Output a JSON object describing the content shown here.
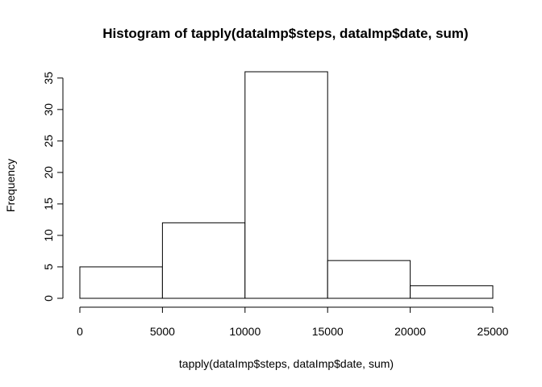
{
  "chart_data": {
    "type": "bar",
    "title": "Histogram of tapply(dataImp$steps, dataImp$date, sum)",
    "xlabel": "tapply(dataImp$steps, dataImp$date, sum)",
    "ylabel": "Frequency",
    "bins": [
      {
        "from": 0,
        "to": 5000,
        "count": 5
      },
      {
        "from": 5000,
        "to": 10000,
        "count": 12
      },
      {
        "from": 10000,
        "to": 15000,
        "count": 36
      },
      {
        "from": 15000,
        "to": 20000,
        "count": 6
      },
      {
        "from": 20000,
        "to": 25000,
        "count": 2
      }
    ],
    "xlim": [
      0,
      25000
    ],
    "ylim": [
      0,
      36
    ],
    "xticks": [
      0,
      5000,
      10000,
      15000,
      20000,
      25000
    ],
    "yticks": [
      0,
      5,
      10,
      15,
      20,
      25,
      30,
      35
    ],
    "grid": false,
    "bar_fill": "#ffffff",
    "bar_stroke": "#000000"
  }
}
